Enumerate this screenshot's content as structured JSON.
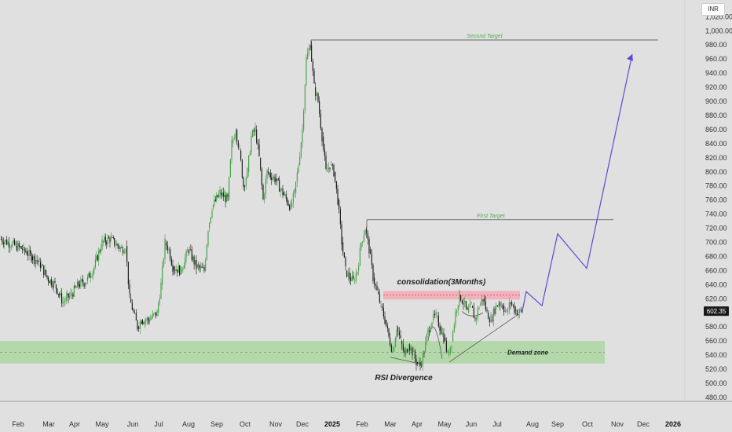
{
  "currency": "INR",
  "last_price": "602.35",
  "chart_data": {
    "type": "candlestick",
    "y_axis": {
      "ticks": [
        "1,020.00",
        "1,000.00",
        "980.00",
        "960.00",
        "940.00",
        "920.00",
        "900.00",
        "880.00",
        "860.00",
        "840.00",
        "820.00",
        "800.00",
        "780.00",
        "760.00",
        "740.00",
        "720.00",
        "700.00",
        "680.00",
        "660.00",
        "640.00",
        "620.00",
        "600.00",
        "580.00",
        "560.00",
        "540.00",
        "520.00",
        "500.00",
        "480.00"
      ],
      "range": [
        470,
        1030
      ]
    },
    "x_axis": {
      "labels": [
        {
          "text": "Feb"
        },
        {
          "text": "Mar"
        },
        {
          "text": "Apr"
        },
        {
          "text": "May"
        },
        {
          "text": "Jun"
        },
        {
          "text": "Jul"
        },
        {
          "text": "Aug"
        },
        {
          "text": "Sep"
        },
        {
          "text": "Oct"
        },
        {
          "text": "Nov"
        },
        {
          "text": "Dec"
        },
        {
          "text": "2025",
          "bold": true
        },
        {
          "text": "Feb"
        },
        {
          "text": "Mar"
        },
        {
          "text": "Apr"
        },
        {
          "text": "May"
        },
        {
          "text": "Jun"
        },
        {
          "text": "Jul"
        },
        {
          "text": "Aug"
        },
        {
          "text": "Sep"
        },
        {
          "text": "Oct"
        },
        {
          "text": "Nov"
        },
        {
          "text": "Dec"
        },
        {
          "text": "2026",
          "bold": true
        }
      ]
    },
    "price_path": [
      [
        0,
        705
      ],
      [
        10,
        700
      ],
      [
        20,
        695
      ],
      [
        30,
        690
      ],
      [
        40,
        680
      ],
      [
        50,
        672
      ],
      [
        60,
        650
      ],
      [
        70,
        640
      ],
      [
        80,
        615
      ],
      [
        90,
        625
      ],
      [
        100,
        640
      ],
      [
        110,
        645
      ],
      [
        120,
        665
      ],
      [
        130,
        700
      ],
      [
        140,
        705
      ],
      [
        150,
        695
      ],
      [
        155,
        690
      ],
      [
        160,
        695
      ],
      [
        165,
        620
      ],
      [
        170,
        600
      ],
      [
        175,
        580
      ],
      [
        180,
        590
      ],
      [
        190,
        590
      ],
      [
        200,
        600
      ],
      [
        205,
        640
      ],
      [
        210,
        700
      ],
      [
        215,
        690
      ],
      [
        220,
        665
      ],
      [
        230,
        660
      ],
      [
        240,
        690
      ],
      [
        250,
        665
      ],
      [
        260,
        660
      ],
      [
        265,
        720
      ],
      [
        270,
        750
      ],
      [
        280,
        770
      ],
      [
        290,
        760
      ],
      [
        295,
        840
      ],
      [
        300,
        860
      ],
      [
        305,
        830
      ],
      [
        310,
        780
      ],
      [
        315,
        800
      ],
      [
        320,
        850
      ],
      [
        325,
        860
      ],
      [
        330,
        820
      ],
      [
        335,
        760
      ],
      [
        340,
        800
      ],
      [
        350,
        790
      ],
      [
        360,
        770
      ],
      [
        370,
        750
      ],
      [
        375,
        770
      ],
      [
        380,
        810
      ],
      [
        385,
        860
      ],
      [
        390,
        960
      ],
      [
        395,
        980
      ],
      [
        400,
        920
      ],
      [
        405,
        900
      ],
      [
        410,
        850
      ],
      [
        415,
        800
      ],
      [
        420,
        810
      ],
      [
        425,
        800
      ],
      [
        430,
        760
      ],
      [
        435,
        700
      ],
      [
        440,
        660
      ],
      [
        445,
        650
      ],
      [
        450,
        645
      ],
      [
        455,
        660
      ],
      [
        460,
        700
      ],
      [
        465,
        720
      ],
      [
        470,
        690
      ],
      [
        475,
        650
      ],
      [
        480,
        630
      ],
      [
        485,
        610
      ],
      [
        490,
        590
      ],
      [
        495,
        565
      ],
      [
        500,
        545
      ],
      [
        505,
        580
      ],
      [
        510,
        560
      ],
      [
        515,
        540
      ],
      [
        520,
        555
      ],
      [
        525,
        545
      ],
      [
        530,
        530
      ],
      [
        535,
        525
      ],
      [
        540,
        545
      ],
      [
        545,
        575
      ],
      [
        550,
        590
      ],
      [
        555,
        595
      ],
      [
        560,
        580
      ],
      [
        565,
        565
      ],
      [
        570,
        540
      ],
      [
        575,
        560
      ],
      [
        580,
        600
      ],
      [
        585,
        625
      ],
      [
        590,
        615
      ],
      [
        595,
        600
      ],
      [
        600,
        610
      ],
      [
        605,
        590
      ],
      [
        610,
        610
      ],
      [
        615,
        620
      ],
      [
        620,
        600
      ],
      [
        625,
        590
      ],
      [
        630,
        605
      ],
      [
        635,
        615
      ],
      [
        640,
        610
      ],
      [
        645,
        600
      ],
      [
        650,
        615
      ],
      [
        655,
        605
      ],
      [
        660,
        600
      ],
      [
        665,
        602.35
      ]
    ],
    "projection": [
      [
        665,
        602.35
      ],
      [
        670,
        630
      ],
      [
        690,
        610
      ],
      [
        710,
        712
      ],
      [
        747,
        663
      ],
      [
        805,
        967
      ]
    ],
    "zones": {
      "demand_zone": {
        "label": "Demand zone",
        "range": [
          528,
          560
        ]
      },
      "consolidation": {
        "label": "consolidation(3Months)",
        "range": [
          619,
          631
        ]
      }
    },
    "targets": [
      {
        "label": "Second Target",
        "price": 987
      },
      {
        "label": "First Target",
        "price": 732
      }
    ],
    "annotations": [
      {
        "text": "RSI Divergence"
      }
    ],
    "colors": {
      "up": "#3f9d3f",
      "down": "#111111",
      "projection": "#5b4ad6",
      "demand": "#a6d69a",
      "resistance": "#f4a9b5",
      "target_label": "#4caf50"
    }
  }
}
